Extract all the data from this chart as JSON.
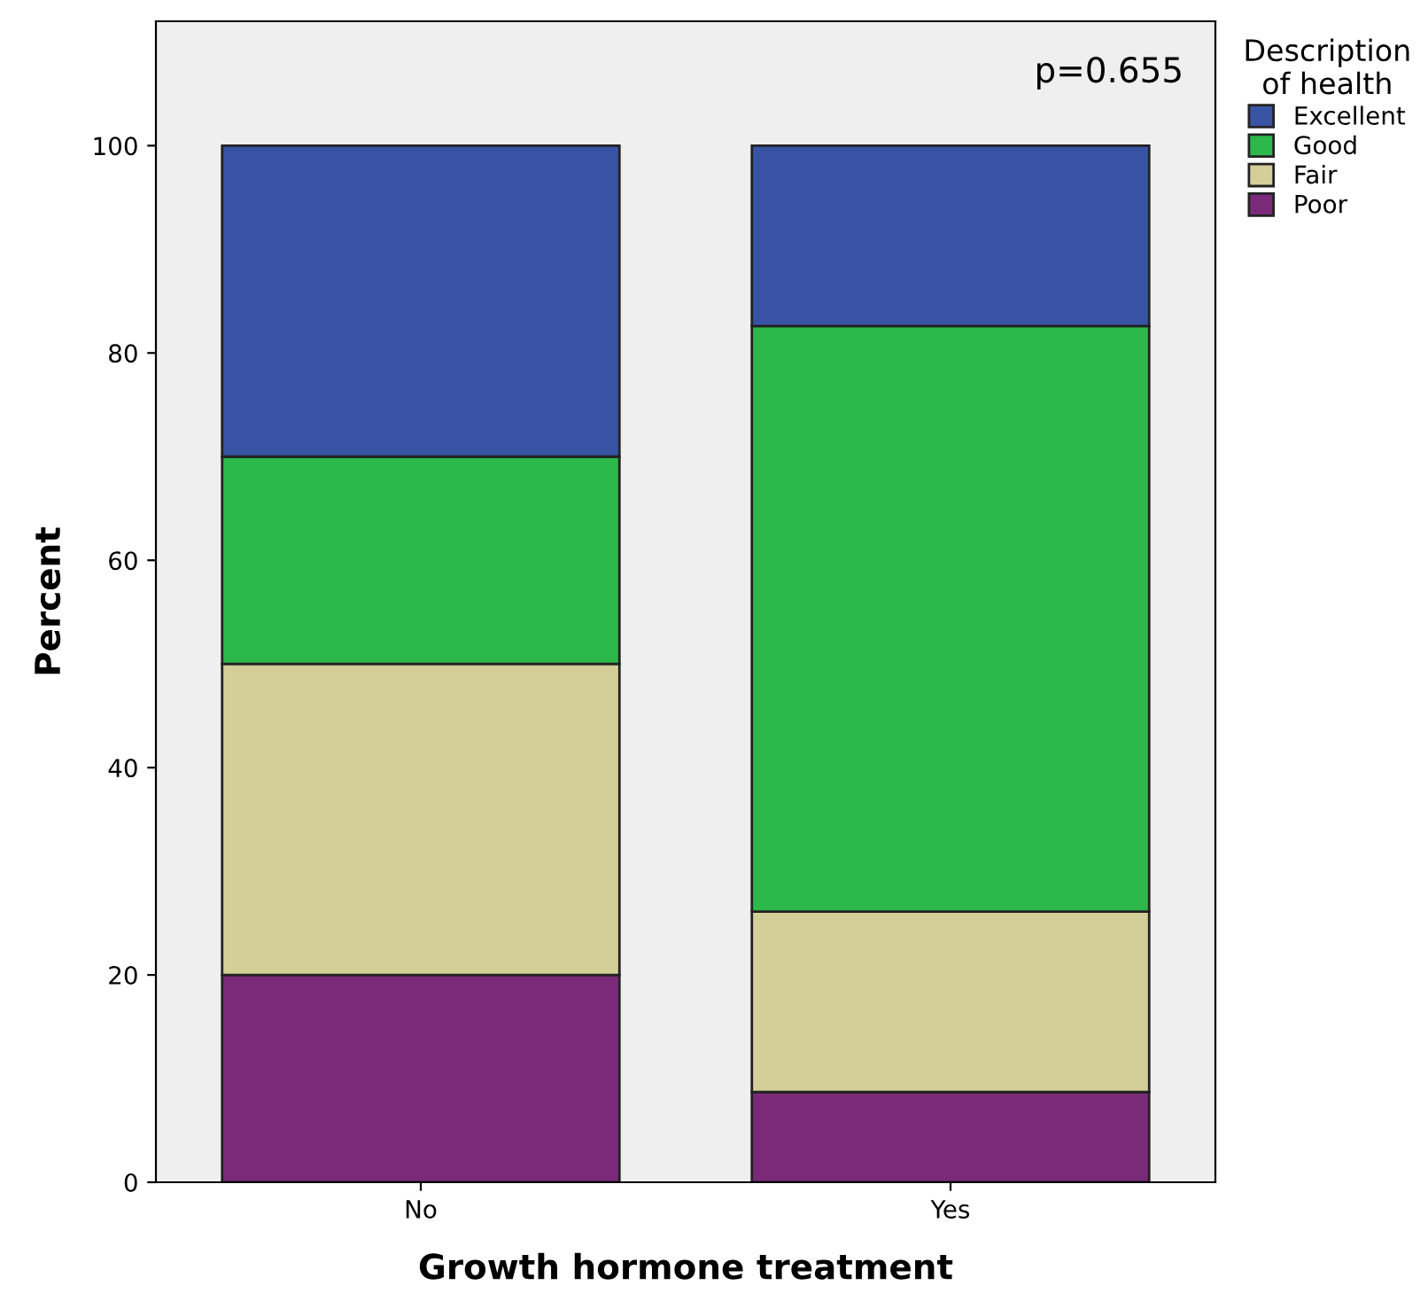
{
  "chart_data": {
    "type": "bar",
    "stacked": true,
    "xlabel": "Growth hormone treatment",
    "ylabel": "Percent",
    "legend_title": "Description\nof health",
    "categories": [
      "No",
      "Yes"
    ],
    "series": [
      {
        "name": "Poor",
        "color": "#7b2a7a",
        "values": [
          20,
          8.7
        ]
      },
      {
        "name": "Fair",
        "color": "#d4cf99",
        "values": [
          30,
          17.4
        ]
      },
      {
        "name": "Good",
        "color": "#2db84b",
        "values": [
          20,
          56.5
        ]
      },
      {
        "name": "Excellent",
        "color": "#3953a4",
        "values": [
          30,
          17.4
        ]
      }
    ],
    "ylim": [
      0,
      112
    ],
    "yticks": [
      0,
      20,
      40,
      60,
      80,
      100
    ],
    "grid": false,
    "legend": "top right",
    "annotations": [
      "p=0.655"
    ]
  }
}
